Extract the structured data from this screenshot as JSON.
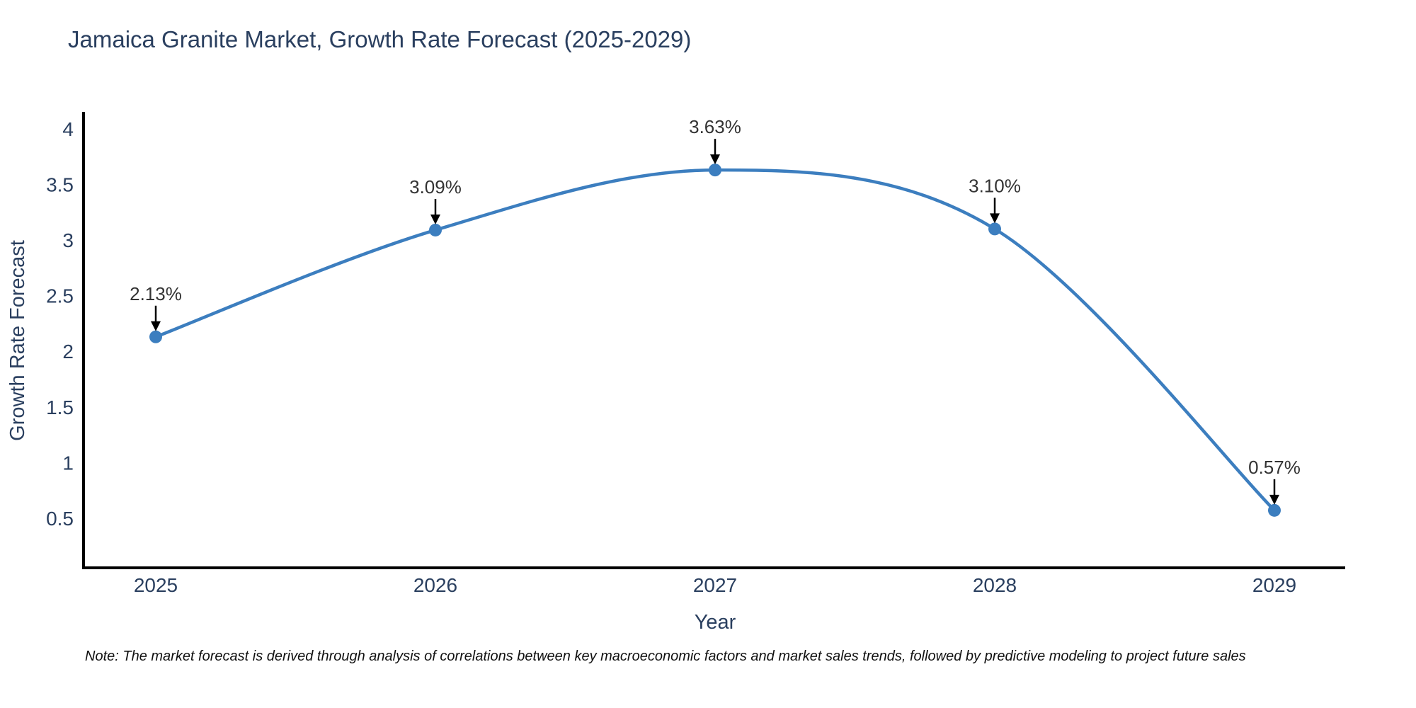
{
  "chart": {
    "title": "Jamaica Granite Market, Growth Rate Forecast (2025-2029)",
    "note": "Note: The market forecast is derived through analysis of correlations between key macroeconomic factors and market sales trends, followed by predictive modeling to project future sales",
    "colors": {
      "line": "#3c7ebf",
      "marker": "#3c7ebf",
      "axis": "#000000",
      "text": "#2a3f5f",
      "annotation": "#333333",
      "arrow": "#000000",
      "background": "#ffffff"
    }
  },
  "chart_data": {
    "type": "line",
    "line_shape": "spline",
    "x": [
      "2025",
      "2026",
      "2027",
      "2028",
      "2029"
    ],
    "series": [
      {
        "name": "Growth Rate Forecast",
        "values": [
          2.13,
          3.09,
          3.63,
          3.1,
          0.57
        ]
      }
    ],
    "point_labels": [
      "2.13%",
      "3.09%",
      "3.63%",
      "3.10%",
      "0.57%"
    ],
    "title": "Jamaica Granite Market, Growth Rate Forecast (2025-2029)",
    "xlabel": "Year",
    "ylabel": "Growth Rate Forecast",
    "ylim": [
      0.05,
      4.14
    ],
    "yticks": [
      0.5,
      1,
      1.5,
      2,
      2.5,
      3,
      3.5,
      4
    ],
    "ytick_labels": [
      "0.5",
      "1",
      "1.5",
      "2",
      "2.5",
      "3",
      "3.5",
      "4"
    ],
    "grid": false,
    "legend": "none",
    "marker": "circle",
    "annotation_style": "value labels with downward arrows above each point"
  }
}
